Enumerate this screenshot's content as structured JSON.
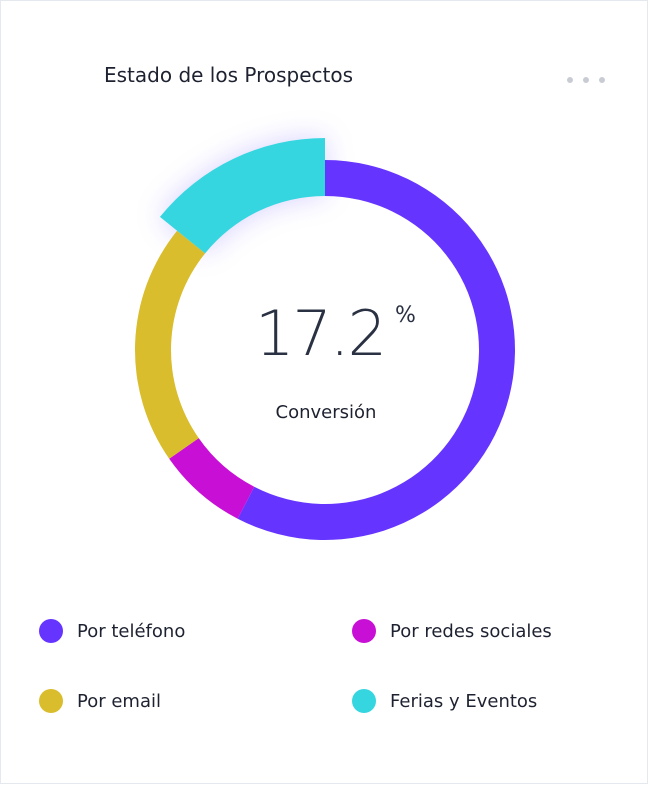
{
  "card": {
    "title": "Estado de los Prospectos",
    "menu_icon": "more-horizontal-icon"
  },
  "center": {
    "value": "17.2",
    "unit": "%",
    "label": "Conversión"
  },
  "chart_data": {
    "type": "pie",
    "donut": true,
    "title": "Estado de los Prospectos",
    "center_value": 17.2,
    "center_unit": "%",
    "center_label": "Conversión",
    "legend_position": "bottom",
    "categories": [
      "Por teléfono",
      "Por redes sociales",
      "Por email",
      "Ferias y Eventos"
    ],
    "values": [
      57.6,
      7.7,
      20.5,
      14.2
    ],
    "colors": [
      "#6634ff",
      "#c80fd6",
      "#d9bd2c",
      "#35d6e0"
    ],
    "highlighted": "Ferias y Eventos"
  },
  "legend": {
    "items": [
      {
        "label": "Por teléfono",
        "color": "#6634ff"
      },
      {
        "label": "Por redes sociales",
        "color": "#c80fd6"
      },
      {
        "label": "Por email",
        "color": "#d9bd2c"
      },
      {
        "label": "Ferias y Eventos",
        "color": "#35d6e0"
      }
    ]
  }
}
